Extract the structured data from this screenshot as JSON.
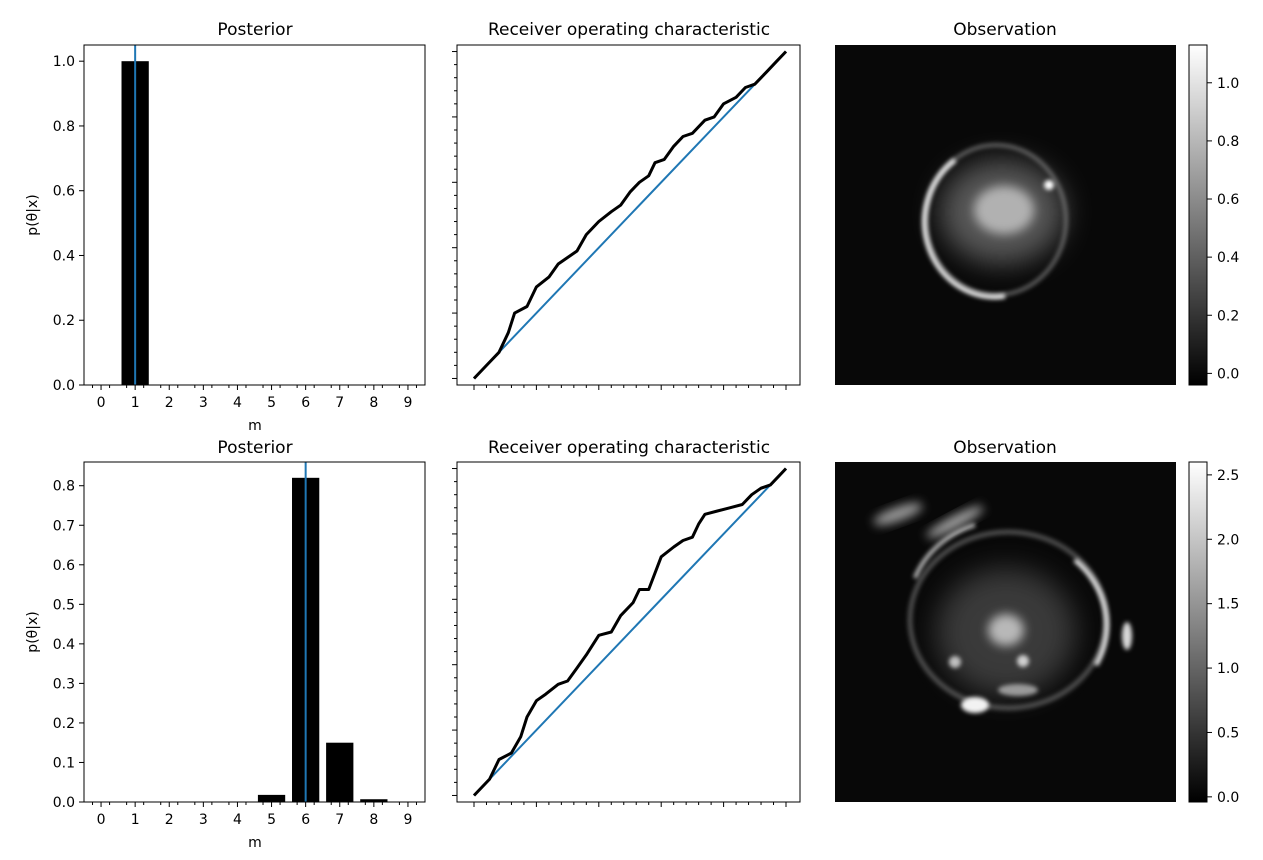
{
  "colors": {
    "bar": "#000000",
    "truth_line": "#1f77b4",
    "diagonal": "#1f77b4",
    "roc_curve": "#000000",
    "image_background": "#080808"
  },
  "chart_data": [
    {
      "type": "bar",
      "title": "Posterior",
      "xlabel": "m",
      "ylabel": "p(θ|x)",
      "categories": [
        "0",
        "1",
        "2",
        "3",
        "4",
        "5",
        "6",
        "7",
        "8",
        "9"
      ],
      "values": [
        0,
        1.0,
        0,
        0,
        0,
        0,
        0,
        0,
        0,
        0
      ],
      "true_value": 1,
      "xlim": [
        -0.5,
        9.5
      ],
      "ylim": [
        0,
        1.05
      ],
      "yticks": [
        "0.0",
        "0.2",
        "0.4",
        "0.6",
        "0.8",
        "1.0"
      ],
      "ytick_values": [
        0,
        0.2,
        0.4,
        0.6,
        0.8,
        1.0
      ]
    },
    {
      "type": "line",
      "title": "Receiver operating characteristic",
      "xlim": [
        0,
        1
      ],
      "ylim": [
        -0.02,
        1.02
      ],
      "series": [
        {
          "x": [
            0,
            0.05,
            0.08,
            0.11,
            0.13,
            0.17,
            0.2,
            0.24,
            0.27,
            0.3,
            0.33,
            0.36,
            0.4,
            0.44,
            0.47,
            0.5,
            0.53,
            0.56,
            0.58,
            0.61,
            0.64,
            0.67,
            0.7,
            0.74,
            0.77,
            0.8,
            0.84,
            0.87,
            0.9,
            0.94,
            0.97,
            1.0
          ],
          "y": [
            0.0,
            0.05,
            0.08,
            0.14,
            0.2,
            0.22,
            0.28,
            0.31,
            0.35,
            0.37,
            0.39,
            0.44,
            0.48,
            0.51,
            0.53,
            0.57,
            0.6,
            0.62,
            0.66,
            0.67,
            0.71,
            0.74,
            0.75,
            0.79,
            0.8,
            0.84,
            0.86,
            0.89,
            0.9,
            0.94,
            0.97,
            1.0
          ]
        },
        {
          "x": [
            0,
            1
          ],
          "y": [
            0,
            1
          ]
        }
      ]
    },
    {
      "type": "heatmap",
      "title": "Observation",
      "colorbar_range": [
        -0.04,
        1.13
      ],
      "colorbar_ticks": [
        "0.0",
        "0.2",
        "0.4",
        "0.6",
        "0.8",
        "1.0"
      ],
      "colorbar_tick_values": [
        0,
        0.2,
        0.4,
        0.6,
        0.8,
        1.0
      ]
    },
    {
      "type": "bar",
      "title": "Posterior",
      "xlabel": "m",
      "ylabel": "p(θ|x)",
      "categories": [
        "0",
        "1",
        "2",
        "3",
        "4",
        "5",
        "6",
        "7",
        "8",
        "9"
      ],
      "values": [
        0.001,
        0.001,
        0.001,
        0.001,
        0.001,
        0.018,
        0.82,
        0.15,
        0.007,
        0.001
      ],
      "true_value": 6,
      "xlim": [
        -0.5,
        9.5
      ],
      "ylim": [
        0,
        0.86
      ],
      "yticks": [
        "0.0",
        "0.1",
        "0.2",
        "0.3",
        "0.4",
        "0.5",
        "0.6",
        "0.7",
        "0.8"
      ],
      "ytick_values": [
        0,
        0.1,
        0.2,
        0.3,
        0.4,
        0.5,
        0.6,
        0.7,
        0.8
      ]
    },
    {
      "type": "line",
      "title": "Receiver operating characteristic",
      "xlim": [
        0,
        1
      ],
      "ylim": [
        -0.02,
        1.02
      ],
      "series": [
        {
          "x": [
            0,
            0.05,
            0.08,
            0.12,
            0.15,
            0.17,
            0.2,
            0.23,
            0.27,
            0.3,
            0.33,
            0.36,
            0.4,
            0.44,
            0.47,
            0.51,
            0.53,
            0.56,
            0.6,
            0.64,
            0.67,
            0.7,
            0.72,
            0.74,
            0.78,
            0.82,
            0.86,
            0.89,
            0.92,
            0.95,
            0.98,
            1.0
          ],
          "y": [
            0.0,
            0.05,
            0.11,
            0.13,
            0.18,
            0.24,
            0.29,
            0.31,
            0.34,
            0.35,
            0.39,
            0.43,
            0.49,
            0.5,
            0.55,
            0.59,
            0.63,
            0.63,
            0.73,
            0.76,
            0.78,
            0.79,
            0.83,
            0.86,
            0.87,
            0.88,
            0.89,
            0.92,
            0.94,
            0.95,
            0.98,
            1.0
          ]
        },
        {
          "x": [
            0,
            1
          ],
          "y": [
            0,
            1
          ]
        }
      ]
    },
    {
      "type": "heatmap",
      "title": "Observation",
      "colorbar_range": [
        -0.04,
        2.6
      ],
      "colorbar_ticks": [
        "0.0",
        "0.5",
        "1.0",
        "1.5",
        "2.0",
        "2.5"
      ],
      "colorbar_tick_values": [
        0,
        0.5,
        1.0,
        1.5,
        2.0,
        2.5
      ]
    }
  ]
}
